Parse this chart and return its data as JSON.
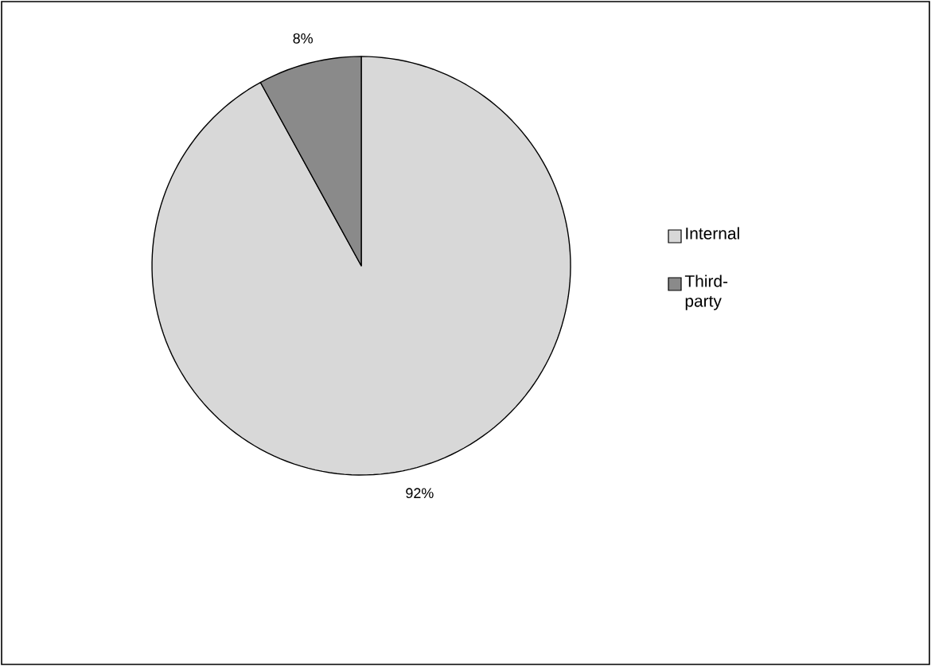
{
  "chart_data": {
    "type": "pie",
    "categories": [
      "Internal",
      "Third-party"
    ],
    "values": [
      92,
      8
    ],
    "colors": [
      "#d8d8d8",
      "#8a8a8a"
    ],
    "value_labels": [
      "92%",
      "8%"
    ],
    "legend": "right"
  }
}
